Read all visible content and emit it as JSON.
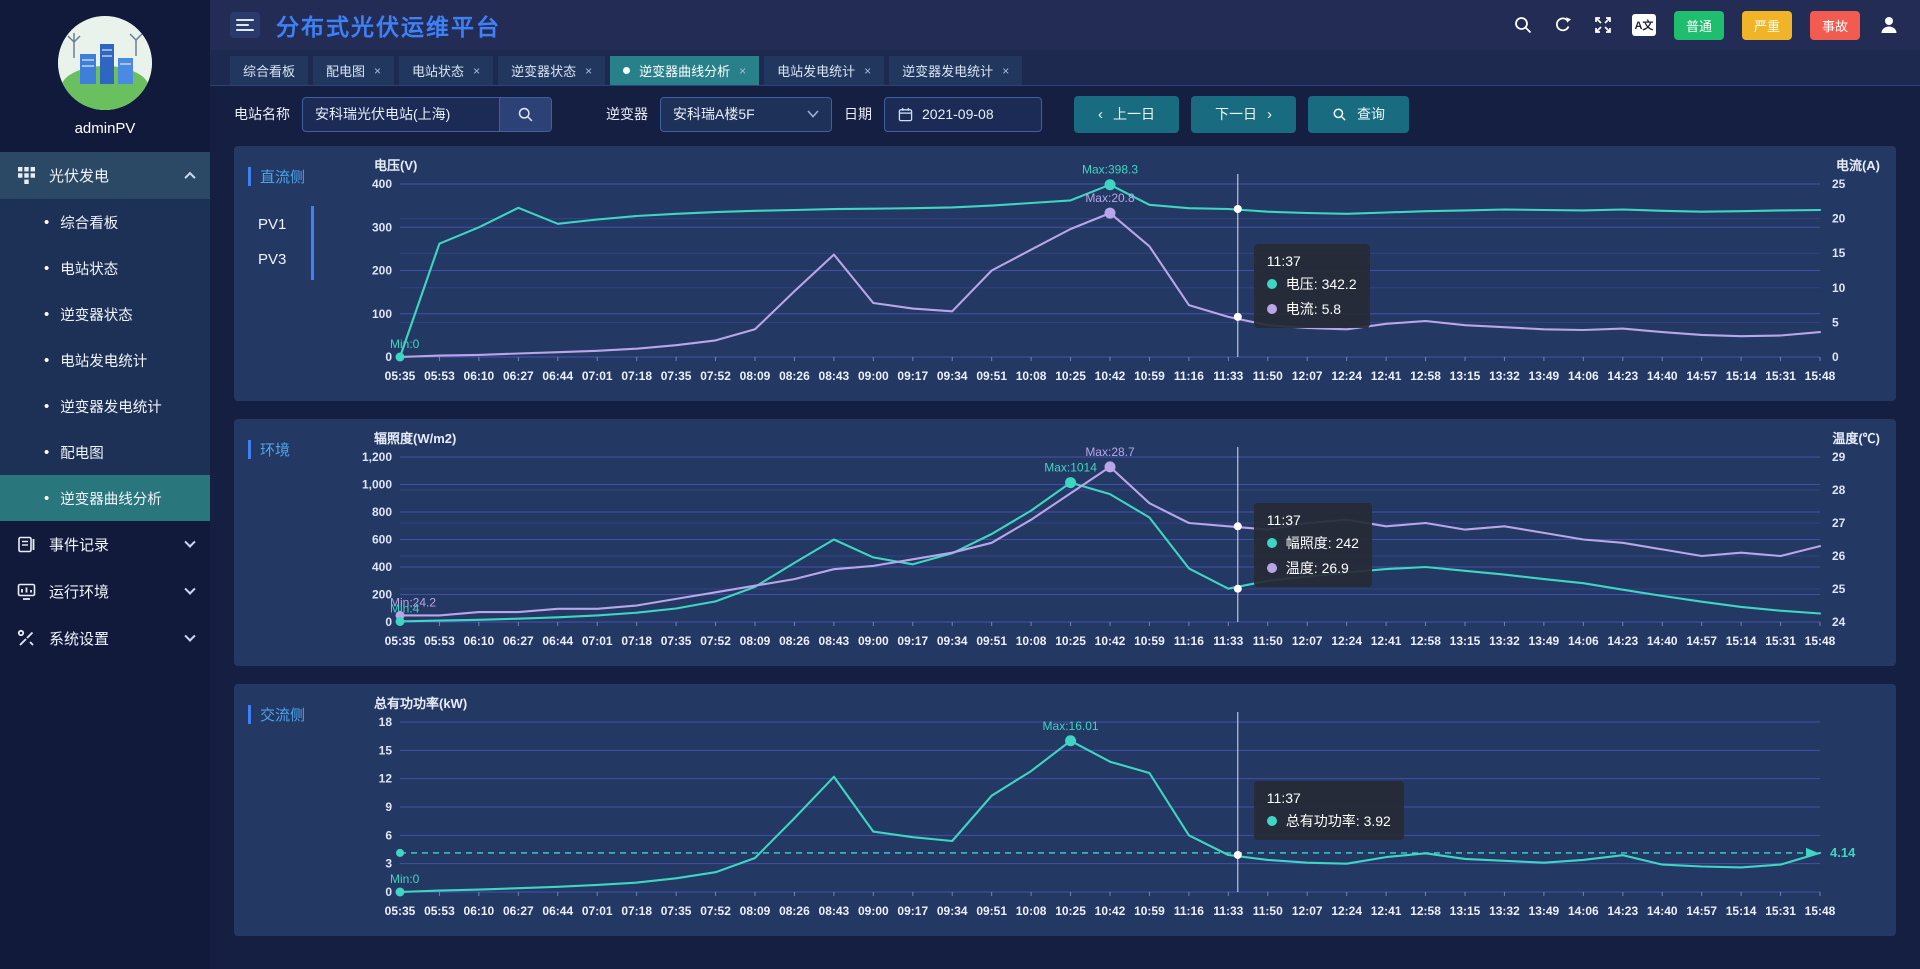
{
  "header": {
    "title": "分布式光伏运维平台",
    "translate_label": "A文",
    "badges": [
      {
        "label": "普通",
        "color": "#1fbe6e"
      },
      {
        "label": "严重",
        "color": "#f0b429"
      },
      {
        "label": "事故",
        "color": "#f25b50"
      }
    ]
  },
  "sidebar": {
    "username": "adminPV",
    "menu": [
      {
        "label": "光伏发电",
        "icon": "grid-icon",
        "expanded": true,
        "children": [
          "综合看板",
          "电站状态",
          "逆变器状态",
          "电站发电统计",
          "逆变器发电统计",
          "配电图",
          "逆变器曲线分析"
        ],
        "active_child": "逆变器曲线分析"
      },
      {
        "label": "事件记录",
        "icon": "event-log-icon",
        "expanded": false
      },
      {
        "label": "运行环境",
        "icon": "environment-icon",
        "expanded": false
      },
      {
        "label": "系统设置",
        "icon": "settings-icon",
        "expanded": false
      }
    ]
  },
  "tabs": [
    {
      "label": "综合看板",
      "closable": false,
      "active": false
    },
    {
      "label": "配电图",
      "closable": true,
      "active": false
    },
    {
      "label": "电站状态",
      "closable": true,
      "active": false
    },
    {
      "label": "逆变器状态",
      "closable": true,
      "active": false
    },
    {
      "label": "逆变器曲线分析",
      "closable": true,
      "active": true
    },
    {
      "label": "电站发电统计",
      "closable": true,
      "active": false
    },
    {
      "label": "逆变器发电统计",
      "closable": true,
      "active": false
    }
  ],
  "filters": {
    "station_label": "电站名称",
    "station_value": "安科瑞光伏电站(上海)",
    "inverter_label": "逆变器",
    "inverter_value": "安科瑞A楼5F",
    "date_label": "日期",
    "date_value": "2021-09-08",
    "prev_chevron": "‹",
    "prev_label": "上一日",
    "next_label": "下一日",
    "next_chevron": "›",
    "query_label": "查询"
  },
  "chart_data": [
    {
      "type": "line",
      "panel_label": "直流侧",
      "side_items": [
        "PV1",
        "PV3"
      ],
      "axis_title_left": "电压(V)",
      "axis_title_right": "电流(A)",
      "x": [
        "05:35",
        "05:53",
        "06:10",
        "06:27",
        "06:44",
        "07:01",
        "07:18",
        "07:35",
        "07:52",
        "08:09",
        "08:26",
        "08:43",
        "09:00",
        "09:17",
        "09:34",
        "09:51",
        "10:08",
        "10:25",
        "10:42",
        "10:59",
        "11:16",
        "11:33",
        "11:50",
        "12:07",
        "12:24",
        "12:41",
        "12:58",
        "13:15",
        "13:32",
        "13:49",
        "14:06",
        "14:23",
        "14:40",
        "14:57",
        "15:14",
        "15:31",
        "15:48"
      ],
      "left_ticks": [
        0,
        100,
        200,
        300,
        400
      ],
      "right_ticks": [
        0,
        5,
        10,
        15,
        20,
        25
      ],
      "series": [
        {
          "name": "电压",
          "axis": "left",
          "color": "#3ed6c3",
          "values": [
            0,
            262,
            300,
            345,
            308,
            318,
            326,
            331,
            335,
            338,
            340,
            342,
            343,
            344,
            346,
            350,
            356,
            362,
            398.3,
            352,
            344,
            342.2,
            336,
            333,
            331,
            334,
            337,
            339,
            341,
            340,
            339,
            341,
            338,
            336,
            337,
            339,
            340
          ]
        },
        {
          "name": "电流",
          "axis": "right",
          "color": "#b9a6e8",
          "values": [
            0,
            0.2,
            0.3,
            0.5,
            0.7,
            0.9,
            1.2,
            1.7,
            2.4,
            4,
            9.5,
            14.8,
            7.8,
            7,
            6.6,
            12.5,
            15.5,
            18.5,
            20.8,
            16,
            7.5,
            5.8,
            4.6,
            4.2,
            4,
            4.8,
            5.2,
            4.6,
            4.3,
            4,
            3.9,
            4.1,
            3.6,
            3.2,
            3,
            3.1,
            3.6
          ]
        }
      ],
      "annotations": [
        {
          "text": "Max:398.3",
          "series": 0,
          "index": 18,
          "value": 398.3,
          "kind": "max"
        },
        {
          "text": "Max:20.8",
          "series": 1,
          "index": 18,
          "value": 20.8,
          "kind": "max"
        },
        {
          "text": "Min:0",
          "series": 0,
          "index": 0,
          "value": 0,
          "kind": "min"
        }
      ],
      "crosshair": {
        "time": "11:37",
        "x_fraction": 0.59,
        "points": [
          {
            "series": 0,
            "value": 342.2
          },
          {
            "series": 1,
            "value": 5.8
          }
        ]
      },
      "tooltip": {
        "time": "11:37",
        "rows": [
          {
            "color": "#3ed6c3",
            "label": "电压",
            "value": "342.2"
          },
          {
            "color": "#b9a6e8",
            "label": "电流",
            "value": "5.8"
          }
        ]
      },
      "mark_line": null
    },
    {
      "type": "line",
      "panel_label": "环境",
      "side_items": [],
      "axis_title_left": "辐照度(W/m2)",
      "axis_title_right": "温度(℃)",
      "x": [
        "05:35",
        "05:53",
        "06:10",
        "06:27",
        "06:44",
        "07:01",
        "07:18",
        "07:35",
        "07:52",
        "08:09",
        "08:26",
        "08:43",
        "09:00",
        "09:17",
        "09:34",
        "09:51",
        "10:08",
        "10:25",
        "10:42",
        "10:59",
        "11:16",
        "11:33",
        "11:50",
        "12:07",
        "12:24",
        "12:41",
        "12:58",
        "13:15",
        "13:32",
        "13:49",
        "14:06",
        "14:23",
        "14:40",
        "14:57",
        "15:14",
        "15:31",
        "15:48"
      ],
      "left_ticks": [
        0,
        200,
        400,
        600,
        800,
        1000,
        1200
      ],
      "right_ticks": [
        24,
        25,
        26,
        27,
        28,
        29
      ],
      "series": [
        {
          "name": "幅照度",
          "axis": "left",
          "color": "#3ed6c3",
          "values": [
            4,
            10,
            16,
            24,
            34,
            48,
            68,
            98,
            150,
            255,
            430,
            600,
            470,
            420,
            500,
            640,
            810,
            1014,
            930,
            760,
            390,
            242,
            300,
            330,
            360,
            385,
            400,
            372,
            345,
            312,
            282,
            235,
            190,
            148,
            110,
            82,
            62
          ]
        },
        {
          "name": "温度",
          "axis": "right",
          "color": "#b9a6e8",
          "values": [
            24.2,
            24.2,
            24.3,
            24.3,
            24.4,
            24.4,
            24.5,
            24.7,
            24.9,
            25.1,
            25.3,
            25.6,
            25.7,
            25.9,
            26.1,
            26.4,
            27.1,
            27.9,
            28.7,
            27.6,
            27,
            26.9,
            26.8,
            27,
            27.1,
            26.9,
            27,
            26.8,
            26.9,
            26.7,
            26.5,
            26.4,
            26.2,
            26,
            26.1,
            26,
            26.3
          ]
        }
      ],
      "annotations": [
        {
          "text": "Max:28.7",
          "series": 1,
          "index": 18,
          "value": 28.7,
          "kind": "max"
        },
        {
          "text": "Max:1014",
          "series": 0,
          "index": 17,
          "value": 1014,
          "kind": "max"
        },
        {
          "text": "Min:24.2",
          "series": 1,
          "index": 0,
          "value": 24.2,
          "kind": "min"
        },
        {
          "text": "Min:4",
          "series": 0,
          "index": 0,
          "value": 4,
          "kind": "min"
        }
      ],
      "crosshair": {
        "time": "11:37",
        "x_fraction": 0.59,
        "points": [
          {
            "series": 0,
            "value": 242
          },
          {
            "series": 1,
            "value": 26.9
          }
        ]
      },
      "tooltip": {
        "time": "11:37",
        "rows": [
          {
            "color": "#3ed6c3",
            "label": "幅照度",
            "value": "242"
          },
          {
            "color": "#b9a6e8",
            "label": "温度",
            "value": "26.9"
          }
        ]
      },
      "mark_line": null
    },
    {
      "type": "line",
      "panel_label": "交流侧",
      "side_items": [],
      "axis_title_left": "总有功功率(kW)",
      "axis_title_right": null,
      "x": [
        "05:35",
        "05:53",
        "06:10",
        "06:27",
        "06:44",
        "07:01",
        "07:18",
        "07:35",
        "07:52",
        "08:09",
        "08:26",
        "08:43",
        "09:00",
        "09:17",
        "09:34",
        "09:51",
        "10:08",
        "10:25",
        "10:42",
        "10:59",
        "11:16",
        "11:33",
        "11:50",
        "12:07",
        "12:24",
        "12:41",
        "12:58",
        "13:15",
        "13:32",
        "13:49",
        "14:06",
        "14:23",
        "14:40",
        "14:57",
        "15:14",
        "15:31",
        "15:48"
      ],
      "left_ticks": [
        0,
        3,
        6,
        9,
        12,
        15,
        18
      ],
      "right_ticks": null,
      "series": [
        {
          "name": "总有功功率",
          "axis": "left",
          "color": "#3ed6c3",
          "values": [
            0,
            0.15,
            0.25,
            0.4,
            0.55,
            0.75,
            1,
            1.45,
            2.1,
            3.6,
            7.8,
            12.2,
            6.4,
            5.8,
            5.4,
            10.2,
            12.8,
            16.01,
            13.8,
            12.6,
            6,
            3.92,
            3.4,
            3.1,
            3,
            3.7,
            4.1,
            3.5,
            3.3,
            3.1,
            3.4,
            3.9,
            2.9,
            2.7,
            2.6,
            2.9,
            4.14
          ]
        }
      ],
      "annotations": [
        {
          "text": "Max:16.01",
          "series": 0,
          "index": 17,
          "value": 16.01,
          "kind": "max"
        },
        {
          "text": "Min:0",
          "series": 0,
          "index": 0,
          "value": 0,
          "kind": "min"
        }
      ],
      "crosshair": {
        "time": "11:37",
        "x_fraction": 0.59,
        "points": [
          {
            "series": 0,
            "value": 3.92
          }
        ]
      },
      "tooltip": {
        "time": "11:37",
        "rows": [
          {
            "color": "#3ed6c3",
            "label": "总有功功率",
            "value": "3.92"
          }
        ]
      },
      "mark_line": {
        "value": 4.14,
        "label": "4.14",
        "color": "#3ed6c3"
      }
    }
  ]
}
